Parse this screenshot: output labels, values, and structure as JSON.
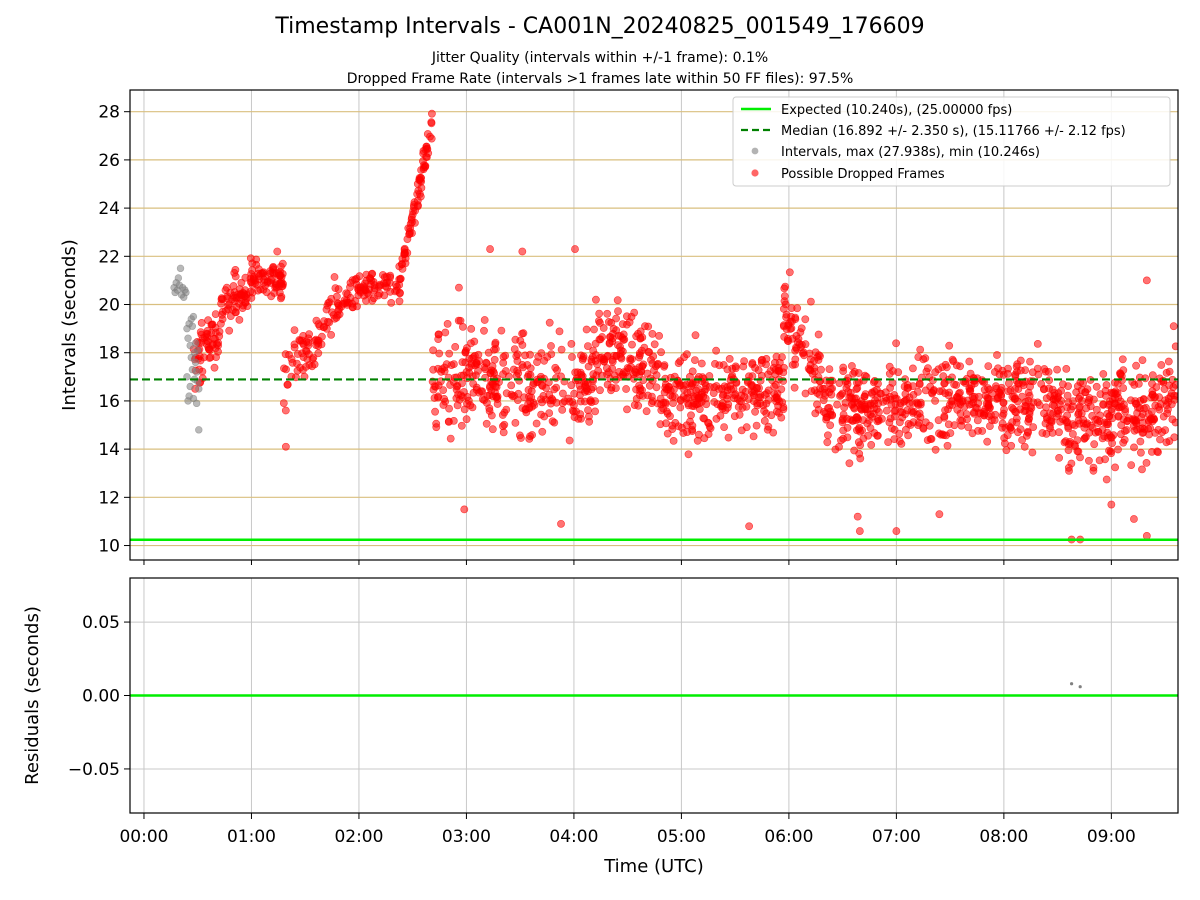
{
  "chart_data": {
    "type": "scatter",
    "title": "Timestamp Intervals - CA001N_20240825_001549_176609",
    "subtitle_lines": [
      "Jitter Quality (intervals within +/-1 frame): 0.1%",
      "Dropped Frame Rate (intervals >1 frames late within 50 FF files): 97.5%"
    ],
    "panels": [
      {
        "id": "intervals",
        "ylabel": "Intervals (seconds)",
        "ylim": [
          9.4,
          28.9
        ],
        "yticks": [
          10,
          12,
          14,
          16,
          18,
          20,
          22,
          24,
          26,
          28
        ],
        "ytick_labels": [
          "10",
          "12",
          "14",
          "16",
          "18",
          "20",
          "22",
          "24",
          "26",
          "28"
        ],
        "grid": true
      },
      {
        "id": "residuals",
        "ylabel": "Residuals (seconds)",
        "xlabel": "Time (UTC)",
        "ylim": [
          -0.08,
          0.08
        ],
        "yticks": [
          -0.05,
          0.0,
          0.05
        ],
        "ytick_labels": [
          "−0.05",
          "0.00",
          "0.05"
        ],
        "grid": true
      }
    ],
    "x_unit": "hours",
    "xlim": [
      -0.13,
      9.62
    ],
    "xticks": [
      0,
      1,
      2,
      3,
      4,
      5,
      6,
      7,
      8,
      9
    ],
    "xtick_labels": [
      "00:00",
      "01:00",
      "02:00",
      "03:00",
      "04:00",
      "05:00",
      "06:00",
      "07:00",
      "08:00",
      "09:00"
    ],
    "legend_position": "top-right",
    "series": [
      {
        "name": "Expected (10.240s), (25.00000 fps)",
        "kind": "hline",
        "value": 10.24,
        "color": "#00ee00"
      },
      {
        "name": "Median (16.892 +/- 2.350 s), (15.11766 +/- 2.12 fps)",
        "kind": "hline-dashed",
        "value": 16.892,
        "color": "#008000"
      },
      {
        "name": "Intervals, max (27.938s), min (10.246s)",
        "kind": "scatter",
        "color": "#808080"
      },
      {
        "name": "Possible Dropped Frames",
        "kind": "scatter",
        "color": "#ff0000"
      }
    ],
    "grey_points": [
      [
        0.28,
        20.7
      ],
      [
        0.29,
        20.5
      ],
      [
        0.3,
        20.9
      ],
      [
        0.31,
        20.6
      ],
      [
        0.32,
        21.1
      ],
      [
        0.33,
        20.8
      ],
      [
        0.34,
        21.5
      ],
      [
        0.35,
        20.4
      ],
      [
        0.36,
        20.7
      ],
      [
        0.37,
        20.3
      ],
      [
        0.38,
        20.6
      ],
      [
        0.39,
        20.5
      ],
      [
        0.4,
        19.0
      ],
      [
        0.41,
        18.6
      ],
      [
        0.42,
        19.2
      ],
      [
        0.43,
        18.3
      ],
      [
        0.44,
        19.4
      ],
      [
        0.45,
        19.1
      ],
      [
        0.46,
        19.5
      ],
      [
        0.47,
        18.0
      ],
      [
        0.48,
        17.6
      ],
      [
        0.49,
        17.2
      ],
      [
        0.5,
        16.8
      ],
      [
        0.51,
        16.5
      ],
      [
        0.4,
        17.0
      ],
      [
        0.41,
        16.0
      ],
      [
        0.42,
        16.2
      ],
      [
        0.43,
        16.6
      ],
      [
        0.45,
        17.3
      ],
      [
        0.47,
        16.9
      ],
      [
        0.49,
        15.9
      ],
      [
        0.51,
        14.8
      ],
      [
        0.48,
        18.4
      ],
      [
        0.44,
        17.8
      ],
      [
        0.46,
        16.1
      ],
      [
        0.5,
        18.1
      ]
    ],
    "red_clusters": [
      {
        "x": [
          0.45,
          0.72
        ],
        "mean_start": 17.2,
        "mean_end": 19.2,
        "spread": 1.1,
        "n": 60
      },
      {
        "x": [
          0.72,
          1.0
        ],
        "mean_start": 19.8,
        "mean_end": 20.8,
        "spread": 0.9,
        "n": 60
      },
      {
        "x": [
          1.0,
          1.3
        ],
        "mean_start": 21.2,
        "mean_end": 21.0,
        "spread": 0.6,
        "n": 70
      },
      {
        "x": [
          1.3,
          1.65
        ],
        "mean_start": 17.0,
        "mean_end": 18.8,
        "spread": 1.2,
        "n": 55
      },
      {
        "x": [
          1.65,
          2.0
        ],
        "mean_start": 19.4,
        "mean_end": 20.6,
        "spread": 0.9,
        "n": 55
      },
      {
        "x": [
          2.0,
          2.4
        ],
        "mean_start": 20.6,
        "mean_end": 21.0,
        "spread": 0.6,
        "n": 60
      },
      {
        "x": [
          2.4,
          2.68
        ],
        "mean_start": 21.5,
        "mean_end": 27.4,
        "spread": 0.6,
        "n": 70
      },
      {
        "x": [
          2.68,
          3.3
        ],
        "mean_start": 16.5,
        "mean_end": 17.0,
        "spread": 1.9,
        "n": 150
      },
      {
        "x": [
          3.3,
          4.2
        ],
        "mean_start": 16.3,
        "mean_end": 17.0,
        "spread": 1.9,
        "n": 180
      },
      {
        "x": [
          4.2,
          4.8
        ],
        "mean_start": 18.5,
        "mean_end": 17.2,
        "spread": 1.7,
        "n": 150
      },
      {
        "x": [
          4.8,
          5.95
        ],
        "mean_start": 16.0,
        "mean_end": 16.5,
        "spread": 1.6,
        "n": 270
      },
      {
        "x": [
          5.95,
          6.3
        ],
        "mean_start": 19.5,
        "mean_end": 17.0,
        "spread": 1.6,
        "n": 80
      },
      {
        "x": [
          6.3,
          7.7
        ],
        "mean_start": 15.6,
        "mean_end": 16.2,
        "spread": 1.6,
        "n": 320
      },
      {
        "x": [
          7.7,
          8.6
        ],
        "mean_start": 16.0,
        "mean_end": 15.8,
        "spread": 1.6,
        "n": 220
      },
      {
        "x": [
          8.6,
          9.62
        ],
        "mean_start": 15.0,
        "mean_end": 16.0,
        "spread": 1.8,
        "n": 260
      }
    ],
    "red_outliers": [
      [
        2.98,
        11.5
      ],
      [
        3.22,
        22.3
      ],
      [
        3.52,
        22.2
      ],
      [
        3.88,
        10.9
      ],
      [
        4.01,
        22.3
      ],
      [
        5.63,
        10.8
      ],
      [
        7.0,
        10.6
      ],
      [
        7.4,
        11.3
      ],
      [
        8.63,
        10.25
      ],
      [
        8.71,
        10.25
      ],
      [
        9.33,
        10.4
      ],
      [
        9.21,
        11.1
      ],
      [
        9.33,
        21.0
      ],
      [
        1.32,
        14.1
      ],
      [
        1.24,
        22.2
      ],
      [
        2.93,
        20.7
      ],
      [
        6.66,
        10.6
      ],
      [
        6.64,
        11.2
      ],
      [
        9.58,
        19.1
      ],
      [
        9.0,
        11.7
      ]
    ],
    "residual_points": [
      [
        8.63,
        0.008
      ],
      [
        8.71,
        0.006
      ]
    ],
    "residual_line": 0.0
  }
}
